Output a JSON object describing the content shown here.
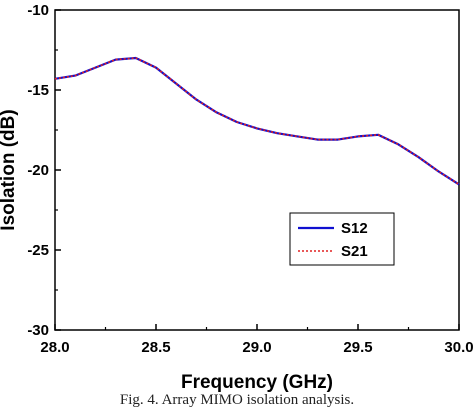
{
  "chart_data": {
    "type": "line",
    "xlabel": "Frequency (GHz)",
    "ylabel": "Isolation (dB)",
    "xlim": [
      28.0,
      30.0
    ],
    "ylim": [
      -30,
      -10
    ],
    "xticks": [
      "28.0",
      "28.5",
      "29.0",
      "29.5",
      "30.0"
    ],
    "yticks": [
      "-10",
      "-15",
      "-20",
      "-25",
      "-30"
    ],
    "grid": false,
    "legend_position": "right-center",
    "series": [
      {
        "name": "S12",
        "color": "#1010d0",
        "style": "solid",
        "x": [
          28.0,
          28.1,
          28.2,
          28.3,
          28.4,
          28.5,
          28.6,
          28.7,
          28.8,
          28.9,
          29.0,
          29.1,
          29.2,
          29.3,
          29.4,
          29.5,
          29.6,
          29.7,
          29.8,
          29.9,
          30.0
        ],
        "y": [
          -14.3,
          -14.1,
          -13.6,
          -13.1,
          -13.0,
          -13.6,
          -14.6,
          -15.6,
          -16.4,
          -17.0,
          -17.4,
          -17.7,
          -17.9,
          -18.1,
          -18.1,
          -17.9,
          -17.8,
          -18.4,
          -19.2,
          -20.1,
          -20.9
        ]
      },
      {
        "name": "S21",
        "color": "#e02020",
        "style": "dotted",
        "x": [
          28.0,
          28.1,
          28.2,
          28.3,
          28.4,
          28.5,
          28.6,
          28.7,
          28.8,
          28.9,
          29.0,
          29.1,
          29.2,
          29.3,
          29.4,
          29.5,
          29.6,
          29.7,
          29.8,
          29.9,
          30.0
        ],
        "y": [
          -14.3,
          -14.1,
          -13.6,
          -13.1,
          -13.0,
          -13.6,
          -14.6,
          -15.6,
          -16.4,
          -17.0,
          -17.4,
          -17.7,
          -17.9,
          -18.1,
          -18.1,
          -17.9,
          -17.8,
          -18.4,
          -19.2,
          -20.1,
          -20.9
        ]
      }
    ]
  },
  "caption": "Fig. 4. Array MIMO isolation analysis."
}
